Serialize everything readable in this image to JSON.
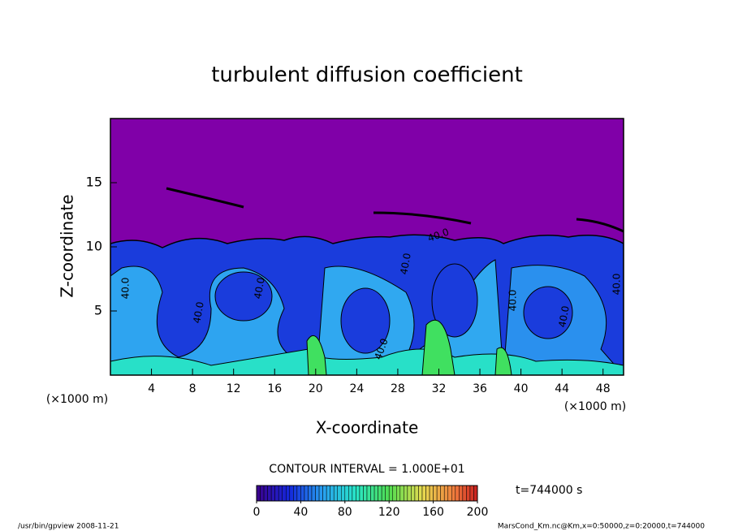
{
  "chart_data": {
    "type": "contour",
    "title": "turbulent diffusion coefficient",
    "x_label": "X-coordinate",
    "y_label": "Z-coordinate",
    "x_unit": "(×1000 m)",
    "y_unit": "(×1000 m)",
    "xlim": [
      0,
      50
    ],
    "xticks": [
      4,
      8,
      12,
      16,
      20,
      24,
      28,
      32,
      36,
      40,
      44,
      48
    ],
    "ylim": [
      0,
      20
    ],
    "yticks": [
      5,
      10,
      15
    ],
    "contour_interval": "CONTOUR INTERVAL = 1.000E+01",
    "contour_labels": [
      "40.0",
      "40.0",
      "40.0",
      "40.0",
      "40.0",
      "40.0",
      "40.0",
      "40.0",
      "40.0"
    ],
    "colorbar": {
      "lim": [
        0,
        200
      ],
      "ticks": [
        0,
        40,
        80,
        120,
        160,
        200
      ]
    },
    "time_label": "t=744000 s",
    "footer_left": "/usr/bin/gpview   2008-11-21",
    "footer_right": "MarsCond_Km.nc@Km,x=0:50000,z=0:20000,t=744000"
  }
}
